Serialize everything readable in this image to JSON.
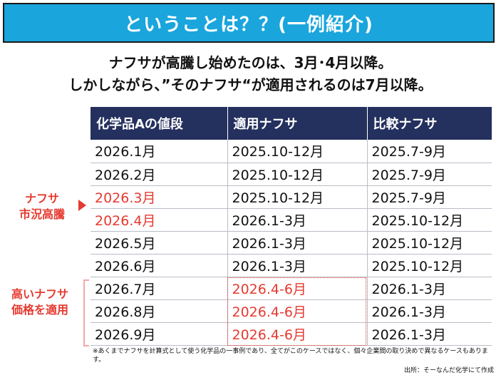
{
  "title": "ということは？？(一例紹介)",
  "subtitle_line1": "ナフサが高騰し始めたのは、3月･4月以降。",
  "subtitle_line2": "しかしながら、”そのナフサ“が適用されるのは7月以降。",
  "table": {
    "headers": [
      "化学品Aの値段",
      "適用ナフサ",
      "比較ナフサ"
    ],
    "rows": [
      {
        "price_period": "2026.1月",
        "applied": "2025.10-12月",
        "comparison": "2025.7-9月",
        "price_highlight": false,
        "applied_highlight": false
      },
      {
        "price_period": "2026.2月",
        "applied": "2025.10-12月",
        "comparison": "2025.7-9月",
        "price_highlight": false,
        "applied_highlight": false
      },
      {
        "price_period": "2026.3月",
        "applied": "2025.10-12月",
        "comparison": "2025.7-9月",
        "price_highlight": true,
        "applied_highlight": false
      },
      {
        "price_period": "2026.4月",
        "applied": "2026.1-3月",
        "comparison": "2025.10-12月",
        "price_highlight": true,
        "applied_highlight": false
      },
      {
        "price_period": "2026.5月",
        "applied": "2026.1-3月",
        "comparison": "2025.10-12月",
        "price_highlight": false,
        "applied_highlight": false
      },
      {
        "price_period": "2026.6月",
        "applied": "2026.1-3月",
        "comparison": "2025.10-12月",
        "price_highlight": false,
        "applied_highlight": false
      },
      {
        "price_period": "2026.7月",
        "applied": "2026.4-6月",
        "comparison": "2026.1-3月",
        "price_highlight": false,
        "applied_highlight": true
      },
      {
        "price_period": "2026.8月",
        "applied": "2026.4-6月",
        "comparison": "2026.1-3月",
        "price_highlight": false,
        "applied_highlight": true
      },
      {
        "price_period": "2026.9月",
        "applied": "2026.4-6月",
        "comparison": "2026.1-3月",
        "price_highlight": false,
        "applied_highlight": true
      }
    ]
  },
  "side_labels": {
    "spike_line1": "ナフサ",
    "spike_line2": "市況高騰",
    "applied_line1": "高いナフサ",
    "applied_line2": "価格を適用"
  },
  "footnote": "※あくまでナフサを計算式として使う化学品の一事例であり、全てがこのケースではなく、個々企業間の取り決めで異なるケースもあります。",
  "source": "出所：そーなんだ化学にて作成",
  "colors": {
    "title_bg": "#1aa5dc",
    "header_bg": "#24305e",
    "highlight_red": "#e53a30"
  }
}
